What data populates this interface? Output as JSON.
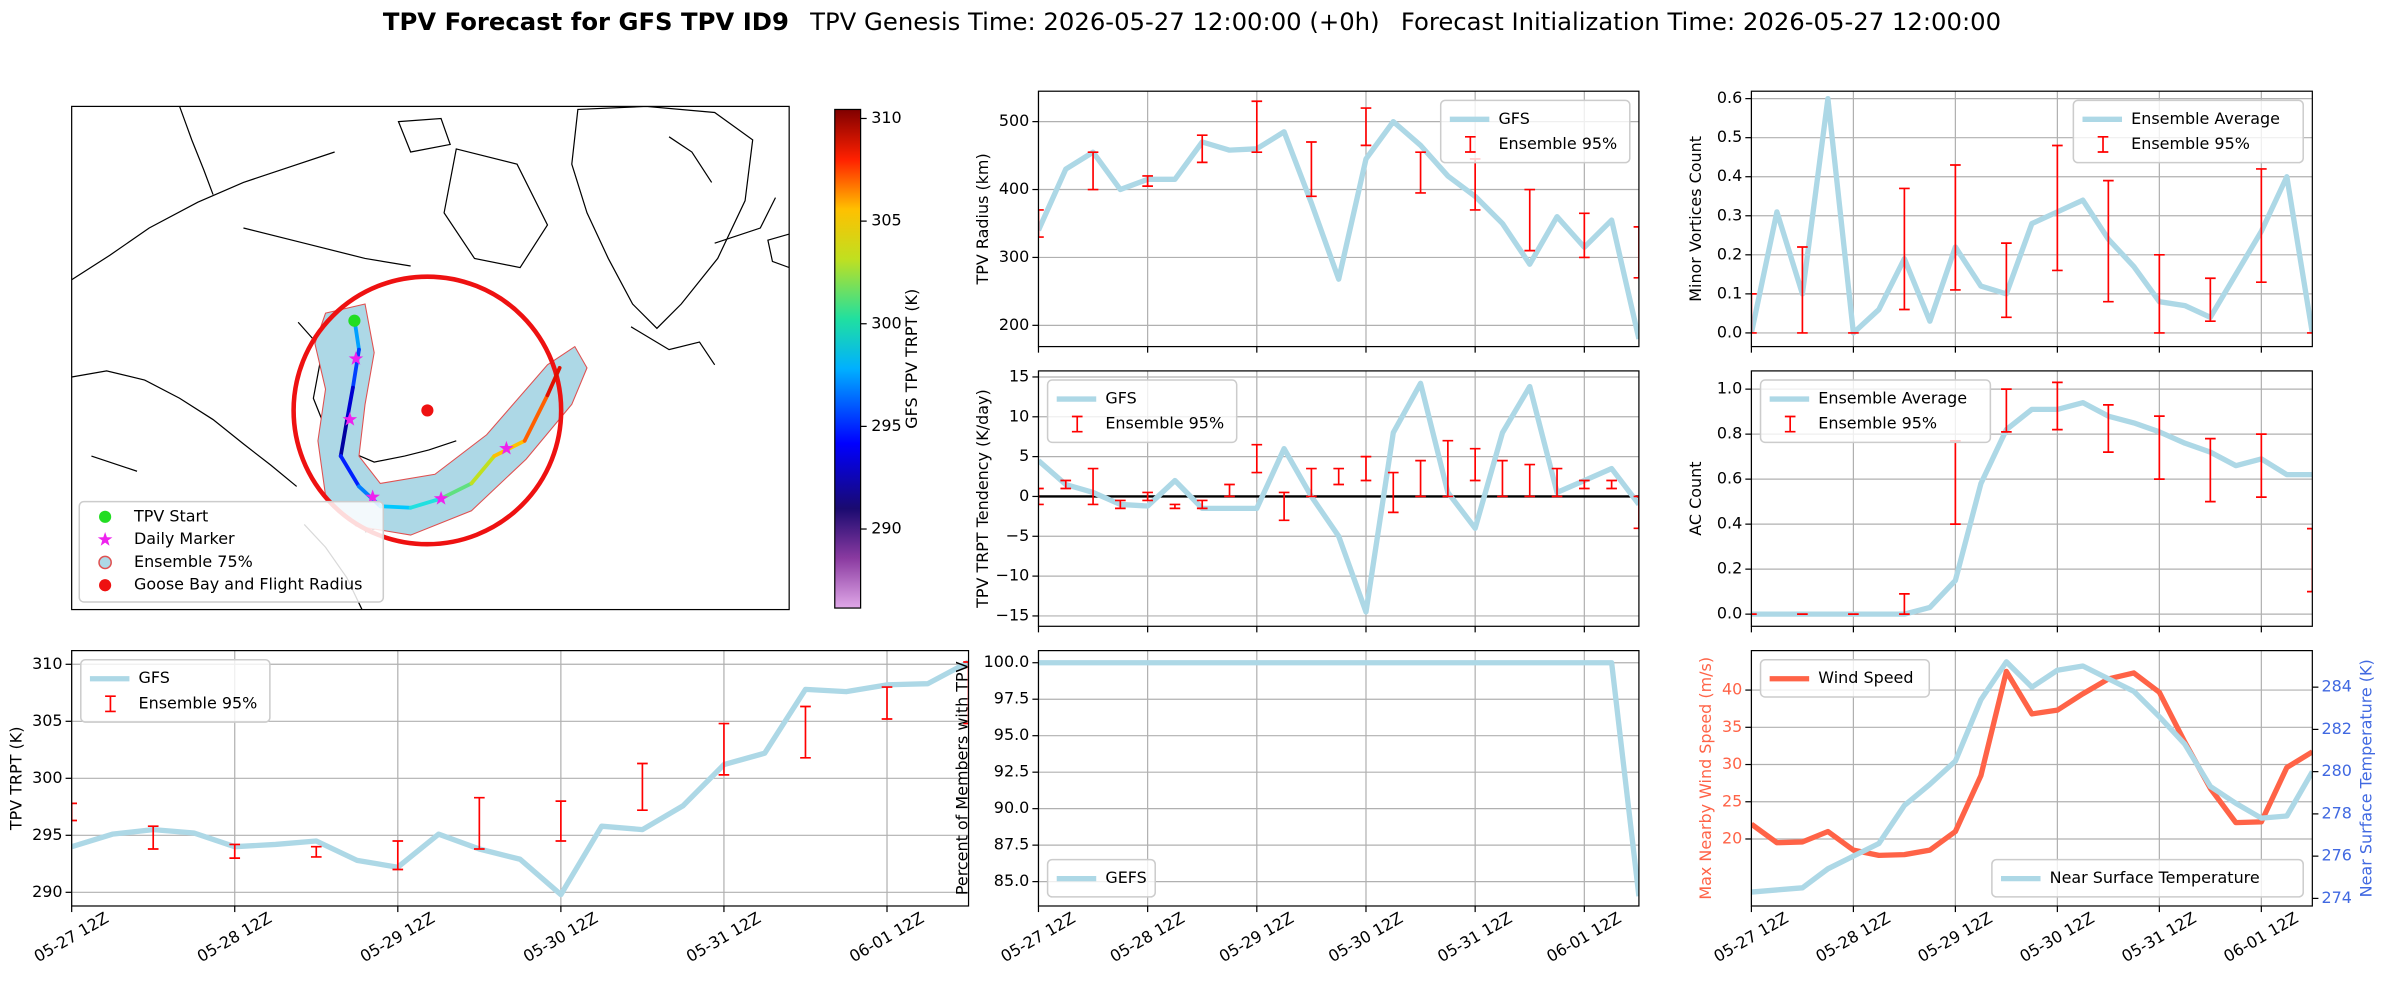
{
  "header": {
    "title": "TPV Forecast for GFS TPV ID9",
    "genesis": "TPV Genesis Time: 2026-05-27 12:00:00 (+0h)",
    "init": "Forecast Initialization Time: 2026-05-27 12:00:00"
  },
  "chart_data": [
    {
      "type": "map",
      "legend": [
        "TPV Start",
        "Daily Marker",
        "Ensemble 75%",
        "Goose Bay and Flight Radius"
      ],
      "colorbar": {
        "label": "GFS TPV TRPT (K)",
        "lim": [
          286.15,
          310.44
        ],
        "ticks": [
          290,
          295,
          300,
          305,
          310
        ]
      }
    },
    {
      "type": "line",
      "ylabel": "TPV Radius (km)",
      "x": [
        "05-27 12Z",
        "05-27 18Z",
        "05-28 00Z",
        "05-28 06Z",
        "05-28 12Z",
        "05-28 18Z",
        "05-29 00Z",
        "05-29 06Z",
        "05-29 12Z",
        "05-29 18Z",
        "05-30 00Z",
        "05-30 06Z",
        "05-30 12Z",
        "05-30 18Z",
        "05-31 00Z",
        "05-31 06Z",
        "05-31 12Z",
        "05-31 18Z",
        "06-01 00Z",
        "06-01 06Z",
        "06-01 12Z",
        "06-01 18Z",
        "06-02 00Z"
      ],
      "xlim": [
        "05-27 12Z",
        "06-02 00Z"
      ],
      "xticks": [
        "05-27 12Z",
        "05-28 12Z",
        "05-29 12Z",
        "05-30 12Z",
        "05-31 12Z",
        "06-01 12Z"
      ],
      "xticklabels": false,
      "ylim": [
        168.7,
        544.8
      ],
      "yticks": [
        200,
        300,
        400,
        500
      ],
      "grid": true,
      "legend": "upper right",
      "series": [
        {
          "name": "GFS",
          "color": "#add8e6",
          "values": [
            340,
            430,
            455,
            400,
            415,
            415,
            470,
            458,
            460,
            485,
            380,
            268,
            445,
            500,
            465,
            420,
            390,
            350,
            290,
            360,
            315,
            355,
            180
          ]
        },
        {
          "name": "Ensemble 95%",
          "color": "#ff0000",
          "type": "errorbar",
          "low": [
            330,
            null,
            400,
            null,
            405,
            null,
            440,
            null,
            455,
            null,
            390,
            null,
            465,
            null,
            395,
            null,
            370,
            null,
            310,
            null,
            300,
            null,
            270
          ],
          "high": [
            370,
            null,
            455,
            null,
            420,
            null,
            480,
            null,
            530,
            null,
            470,
            null,
            520,
            null,
            455,
            null,
            445,
            null,
            400,
            null,
            365,
            null,
            345
          ]
        }
      ]
    },
    {
      "type": "line",
      "ylabel": "Minor Vortices Count",
      "x": [
        "05-27 12Z",
        "05-27 18Z",
        "05-28 00Z",
        "05-28 06Z",
        "05-28 12Z",
        "05-28 18Z",
        "05-29 00Z",
        "05-29 06Z",
        "05-29 12Z",
        "05-29 18Z",
        "05-30 00Z",
        "05-30 06Z",
        "05-30 12Z",
        "05-30 18Z",
        "05-31 00Z",
        "05-31 06Z",
        "05-31 12Z",
        "05-31 18Z",
        "06-01 00Z",
        "06-01 06Z",
        "06-01 12Z",
        "06-01 18Z",
        "06-02 00Z"
      ],
      "xlim": [
        "05-27 12Z",
        "06-02 00Z"
      ],
      "xticks": [
        "05-27 12Z",
        "05-28 12Z",
        "05-29 12Z",
        "05-30 12Z",
        "05-31 12Z",
        "06-01 12Z"
      ],
      "xticklabels": false,
      "ylim": [
        -0.035,
        0.619
      ],
      "yticks": [
        {
          "value": 0,
          "label": "0.0"
        },
        0.1,
        0.2,
        0.3,
        0.4,
        0.5,
        0.6
      ],
      "grid": true,
      "legend": "upper right",
      "series": [
        {
          "name": "Ensemble Average",
          "color": "#add8e6",
          "values": [
            0,
            0.31,
            0.1,
            0.6,
            0,
            0.06,
            0.19,
            0.03,
            0.22,
            0.12,
            0.1,
            0.28,
            0.31,
            0.34,
            0.24,
            0.17,
            0.08,
            0.07,
            0.04,
            0.15,
            0.26,
            0.4,
            0
          ]
        },
        {
          "name": "Ensemble 95%",
          "color": "#ff0000",
          "type": "errorbar",
          "low": [
            0,
            null,
            0,
            null,
            0,
            null,
            0.06,
            null,
            0.11,
            null,
            0.04,
            null,
            0.16,
            null,
            0.08,
            null,
            0,
            null,
            0.03,
            null,
            0.13,
            null,
            0
          ],
          "high": [
            0.1,
            null,
            0.22,
            null,
            0,
            null,
            0.37,
            null,
            0.43,
            null,
            0.23,
            null,
            0.48,
            null,
            0.39,
            null,
            0.2,
            null,
            0.14,
            null,
            0.42,
            null,
            0
          ]
        }
      ]
    },
    {
      "type": "line",
      "ylabel": "TPV TRPT Tendency (K/day)",
      "x": [
        "05-27 12Z",
        "05-27 18Z",
        "05-28 00Z",
        "05-28 06Z",
        "05-28 12Z",
        "05-28 18Z",
        "05-29 00Z",
        "05-29 06Z",
        "05-29 12Z",
        "05-29 18Z",
        "05-30 00Z",
        "05-30 06Z",
        "05-30 12Z",
        "05-30 18Z",
        "05-31 00Z",
        "05-31 06Z",
        "05-31 12Z",
        "05-31 18Z",
        "06-01 00Z",
        "06-01 06Z",
        "06-01 12Z",
        "06-01 18Z",
        "06-02 00Z"
      ],
      "xlim": [
        "05-27 12Z",
        "06-02 00Z"
      ],
      "xticks": [
        "05-27 12Z",
        "05-28 12Z",
        "05-29 12Z",
        "05-30 12Z",
        "05-31 12Z",
        "06-01 12Z"
      ],
      "xticklabels": false,
      "ylim": [
        -16.3,
        15.76
      ],
      "yticks": [
        {
          "value": -15,
          "label": "−15"
        },
        {
          "value": -10,
          "label": "−10"
        },
        {
          "value": -5,
          "label": "−5"
        },
        0,
        5,
        10,
        15
      ],
      "grid": true,
      "legend": "upper left",
      "hline": 0,
      "series": [
        {
          "name": "GFS",
          "color": "#add8e6",
          "values": [
            4.5,
            1.5,
            0.5,
            -1.0,
            -1.2,
            2.0,
            -1.5,
            -1.5,
            -1.5,
            6.0,
            0.0,
            -5.0,
            -14.5,
            8.0,
            14.2,
            0.5,
            -4.0,
            8.0,
            13.8,
            0.5,
            2.0,
            3.5,
            -1.0
          ]
        },
        {
          "name": "Ensemble 95%",
          "color": "#ff0000",
          "type": "errorbar",
          "low": [
            -1,
            1,
            -1,
            -1.5,
            -0.5,
            -1.5,
            -1.5,
            0,
            3,
            -3,
            0,
            1.5,
            2,
            -2,
            0,
            0,
            2,
            0,
            0,
            0,
            1,
            1,
            -4
          ],
          "high": [
            1,
            2,
            3.5,
            -0.5,
            0.5,
            -1,
            -0.5,
            1.5,
            6.5,
            0.5,
            3.5,
            3.5,
            5,
            3,
            4.5,
            7,
            6,
            4.5,
            4,
            3.5,
            2,
            2,
            0
          ]
        }
      ]
    },
    {
      "type": "line",
      "ylabel": "AC Count",
      "x": [
        "05-27 12Z",
        "05-27 18Z",
        "05-28 00Z",
        "05-28 06Z",
        "05-28 12Z",
        "05-28 18Z",
        "05-29 00Z",
        "05-29 06Z",
        "05-29 12Z",
        "05-29 18Z",
        "05-30 00Z",
        "05-30 06Z",
        "05-30 12Z",
        "05-30 18Z",
        "05-31 00Z",
        "05-31 06Z",
        "05-31 12Z",
        "05-31 18Z",
        "06-01 00Z",
        "06-01 06Z",
        "06-01 12Z",
        "06-01 18Z",
        "06-02 00Z"
      ],
      "xlim": [
        "05-27 12Z",
        "06-02 00Z"
      ],
      "xticks": [
        "05-27 12Z",
        "05-28 12Z",
        "05-29 12Z",
        "05-30 12Z",
        "05-31 12Z",
        "06-01 12Z"
      ],
      "xticklabels": false,
      "ylim": [
        -0.054,
        1.081
      ],
      "yticks": [
        {
          "value": 0,
          "label": "0.0"
        },
        0.2,
        0.4,
        0.6,
        0.8,
        {
          "value": 1,
          "label": "1.0"
        }
      ],
      "grid": true,
      "legend": "upper left",
      "series": [
        {
          "name": "Ensemble Average",
          "color": "#add8e6",
          "values": [
            0,
            0,
            0,
            0,
            0,
            0,
            0,
            0.03,
            0.15,
            0.58,
            0.82,
            0.91,
            0.91,
            0.94,
            0.88,
            0.85,
            0.81,
            0.76,
            0.72,
            0.66,
            0.69,
            0.62,
            0.62
          ]
        },
        {
          "name": "Ensemble 95%",
          "color": "#ff0000",
          "type": "errorbar",
          "low": [
            0,
            null,
            0,
            null,
            0,
            null,
            0,
            null,
            0.4,
            null,
            0.81,
            null,
            0.82,
            null,
            0.72,
            null,
            0.6,
            null,
            0.5,
            null,
            0.52,
            null,
            0.1
          ],
          "high": [
            0,
            null,
            0,
            null,
            0,
            null,
            0.09,
            null,
            0.77,
            null,
            1.0,
            null,
            1.03,
            null,
            0.93,
            null,
            0.88,
            null,
            0.78,
            null,
            0.8,
            null,
            0.38
          ]
        }
      ]
    },
    {
      "type": "line",
      "ylabel": "TPV TRPT (K)",
      "x": [
        "05-27 12Z",
        "05-27 18Z",
        "05-28 00Z",
        "05-28 06Z",
        "05-28 12Z",
        "05-28 18Z",
        "05-29 00Z",
        "05-29 06Z",
        "05-29 12Z",
        "05-29 18Z",
        "05-30 00Z",
        "05-30 06Z",
        "05-30 12Z",
        "05-30 18Z",
        "05-31 00Z",
        "05-31 06Z",
        "05-31 12Z",
        "05-31 18Z",
        "06-01 00Z",
        "06-01 06Z",
        "06-01 12Z",
        "06-01 18Z",
        "06-02 00Z"
      ],
      "xlim": [
        "05-27 12Z",
        "06-02 00Z"
      ],
      "xticks": [
        "05-27 12Z",
        "05-28 12Z",
        "05-29 12Z",
        "05-30 12Z",
        "05-31 12Z",
        "06-01 12Z"
      ],
      "ylim": [
        288.8,
        311.2
      ],
      "yticks": [
        290,
        295,
        300,
        305,
        310
      ],
      "grid": true,
      "legend": "upper left",
      "series": [
        {
          "name": "GFS",
          "color": "#add8e6",
          "values": [
            294.0,
            295.1,
            295.5,
            295.2,
            294.0,
            294.2,
            294.5,
            292.8,
            292.2,
            295.1,
            293.8,
            292.9,
            289.8,
            295.8,
            295.5,
            297.6,
            301.2,
            302.2,
            307.8,
            307.6,
            308.2,
            308.3,
            310.2
          ]
        },
        {
          "name": "Ensemble 95%",
          "color": "#ff0000",
          "type": "errorbar",
          "low": [
            296.3,
            null,
            293.8,
            null,
            293.0,
            null,
            293.1,
            null,
            292.0,
            null,
            293.8,
            null,
            294.5,
            null,
            297.2,
            null,
            300.3,
            null,
            301.8,
            null,
            305.2,
            null,
            304.8
          ],
          "high": [
            297.8,
            null,
            295.8,
            null,
            294.2,
            null,
            294.0,
            null,
            294.5,
            null,
            298.3,
            null,
            298.0,
            null,
            301.3,
            null,
            304.8,
            null,
            306.3,
            null,
            308.0,
            null,
            310.2
          ]
        }
      ]
    },
    {
      "type": "line",
      "ylabel": "Percent of Members with TPV",
      "x": [
        "05-27 12Z",
        "05-27 18Z",
        "05-28 00Z",
        "05-28 06Z",
        "05-28 12Z",
        "05-28 18Z",
        "05-29 00Z",
        "05-29 06Z",
        "05-29 12Z",
        "05-29 18Z",
        "05-30 00Z",
        "05-30 06Z",
        "05-30 12Z",
        "05-30 18Z",
        "05-31 00Z",
        "05-31 06Z",
        "05-31 12Z",
        "05-31 18Z",
        "06-01 00Z",
        "06-01 06Z",
        "06-01 12Z",
        "06-01 18Z",
        "06-02 00Z"
      ],
      "xlim": [
        "05-27 12Z",
        "06-02 00Z"
      ],
      "xticks": [
        "05-27 12Z",
        "05-28 12Z",
        "05-29 12Z",
        "05-30 12Z",
        "05-31 12Z",
        "06-01 12Z"
      ],
      "ylim": [
        83.33,
        100.83
      ],
      "yticks": [
        {
          "value": 85,
          "label": "85.0"
        },
        87.5,
        {
          "value": 90,
          "label": "90.0"
        },
        92.5,
        {
          "value": 95,
          "label": "95.0"
        },
        97.5,
        {
          "value": 100,
          "label": "100.0"
        }
      ],
      "grid": true,
      "legend": "lower left",
      "series": [
        {
          "name": "GEFS",
          "color": "#add8e6",
          "values": [
            100,
            100,
            100,
            100,
            100,
            100,
            100,
            100,
            100,
            100,
            100,
            100,
            100,
            100,
            100,
            100,
            100,
            100,
            100,
            100,
            100,
            100,
            84
          ]
        }
      ]
    },
    {
      "type": "line",
      "ylabel": "Max Nearby Wind Speed (m/s)",
      "ylabel_color": "#ff6347",
      "y2label": "Near Surface Temperature (K)",
      "y2label_color": "#4169e1",
      "x": [
        "05-27 12Z",
        "05-27 18Z",
        "05-28 00Z",
        "05-28 06Z",
        "05-28 12Z",
        "05-28 18Z",
        "05-29 00Z",
        "05-29 06Z",
        "05-29 12Z",
        "05-29 18Z",
        "05-30 00Z",
        "05-30 06Z",
        "05-30 12Z",
        "05-30 18Z",
        "05-31 00Z",
        "05-31 06Z",
        "05-31 12Z",
        "05-31 18Z",
        "06-01 00Z",
        "06-01 06Z",
        "06-01 12Z",
        "06-01 18Z",
        "06-02 00Z"
      ],
      "xlim": [
        "05-27 12Z",
        "06-02 00Z"
      ],
      "xticks": [
        "05-27 12Z",
        "05-28 12Z",
        "05-29 12Z",
        "05-30 12Z",
        "05-31 12Z",
        "06-01 12Z"
      ],
      "ylim": [
        11.0,
        45.3
      ],
      "yticks": [
        20,
        25,
        30,
        35,
        40
      ],
      "y2lim": [
        273.64,
        285.73
      ],
      "y2ticks": [
        274,
        276,
        278,
        280,
        282,
        284
      ],
      "grid": true,
      "legend": [
        "upper left",
        "lower right"
      ],
      "series": [
        {
          "name": "Wind Speed",
          "color": "#ff6347",
          "values": [
            22,
            19.5,
            19.6,
            21,
            18.5,
            17.8,
            17.9,
            18.5,
            21,
            28.5,
            42.5,
            36.8,
            37.3,
            39.5,
            41.5,
            42.3,
            39.7,
            33,
            26.8,
            22.2,
            22.3,
            29.6,
            31.7
          ]
        },
        {
          "name": "Near Surface Temperature",
          "color": "#add8e6",
          "axis": "y2",
          "values": [
            274.3,
            274.4,
            274.5,
            275.4,
            276.0,
            276.6,
            278.4,
            279.4,
            280.5,
            283.4,
            285.2,
            284.0,
            284.8,
            285.0,
            284.4,
            283.8,
            282.6,
            281.3,
            279.3,
            278.5,
            277.8,
            277.9,
            280.0
          ]
        }
      ]
    }
  ]
}
